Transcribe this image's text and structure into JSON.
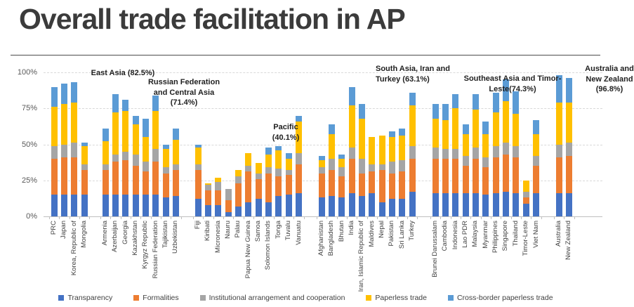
{
  "title": "Overall trade facilitation in AP",
  "chart_data": {
    "type": "bar",
    "stacked": true,
    "unit": "%",
    "ylim": [
      0,
      100
    ],
    "yticks": [
      {
        "value": 0,
        "label": "0%"
      },
      {
        "value": 25,
        "label": "25%"
      },
      {
        "value": 50,
        "label": "50%"
      },
      {
        "value": 75,
        "label": "75%"
      },
      {
        "value": 100,
        "label": "100%"
      }
    ],
    "grid": "dashed horizontal",
    "legend_position": "bottom",
    "series_names": [
      "Transparency",
      "Formalities",
      "Institutional arrangement and cooperation",
      "Paperless trade",
      "Cross-border paperless trade"
    ],
    "series_colors": [
      "#4472C4",
      "#ED7D31",
      "#A5A5A5",
      "#FFC000",
      "#5B9BD5"
    ],
    "groups": [
      {
        "label_lines": [
          "East Asia (82.5%)"
        ],
        "region_average": 82.5,
        "countries": [
          {
            "name": "PRC",
            "values": [
              15,
              25,
              9,
              27,
              14
            ]
          },
          {
            "name": "Japan",
            "values": [
              15,
              26,
              9,
              28,
              14
            ]
          },
          {
            "name": "Korea, Republic of",
            "values": [
              15,
              26,
              10,
              28,
              14
            ]
          },
          {
            "name": "Mongolia",
            "values": [
              15,
              17,
              4,
              13,
              2
            ]
          }
        ]
      },
      {
        "label_lines": [
          "Russian Federation",
          "and Central Asia",
          "(71.4%)"
        ],
        "region_average": 71.4,
        "countries": [
          {
            "name": "Armenia",
            "values": [
              15,
              17,
              4,
              16,
              9
            ]
          },
          {
            "name": "Azerbaijan",
            "values": [
              15,
              23,
              5,
              29,
              13
            ]
          },
          {
            "name": "Georgia",
            "values": [
              15,
              24,
              6,
              28,
              8
            ]
          },
          {
            "name": "Kazakhstan",
            "values": [
              15,
              20,
              8,
              21,
              6
            ]
          },
          {
            "name": "Kyrgyz Republic",
            "values": [
              15,
              16,
              7,
              17,
              13
            ]
          },
          {
            "name": "Russian Federation",
            "values": [
              15,
              23,
              9,
              26,
              11
            ]
          },
          {
            "name": "Tajikistan",
            "values": [
              13,
              17,
              4,
              13,
              3
            ]
          },
          {
            "name": "Uzbekistan",
            "values": [
              14,
              18,
              4,
              17,
              8
            ]
          }
        ]
      },
      {
        "label_lines": [
          "Pacific",
          "(40.1%)"
        ],
        "region_average": 40.1,
        "countries": [
          {
            "name": "Fiji",
            "values": [
              12,
              20,
              4,
              12,
              2
            ]
          },
          {
            "name": "Kiribati",
            "values": [
              8,
              10,
              4,
              1,
              0
            ]
          },
          {
            "name": "Micronesia",
            "values": [
              8,
              10,
              6,
              3,
              0
            ]
          },
          {
            "name": "Nauru",
            "values": [
              3,
              8,
              8,
              0,
              0
            ]
          },
          {
            "name": "Palau",
            "values": [
              7,
              16,
              5,
              4,
              0
            ]
          },
          {
            "name": "Papua New Guinea",
            "values": [
              10,
              21,
              4,
              9,
              0
            ]
          },
          {
            "name": "Samoa",
            "values": [
              12,
              14,
              4,
              7,
              0
            ]
          },
          {
            "name": "Solomon Islands",
            "values": [
              10,
              20,
              4,
              9,
              5
            ]
          },
          {
            "name": "Tonga",
            "values": [
              14,
              14,
              5,
              13,
              3
            ]
          },
          {
            "name": "Tuvalu",
            "values": [
              15,
              14,
              3,
              8,
              4
            ]
          },
          {
            "name": "Vanuatu",
            "values": [
              16,
              20,
              8,
              22,
              4
            ]
          }
        ]
      },
      {
        "label_lines": [
          "South Asia, Iran and",
          "Turkey (63.1%)"
        ],
        "region_average": 63.1,
        "countries": [
          {
            "name": "Afghanistan",
            "values": [
              13,
              17,
              4,
              5,
              3
            ]
          },
          {
            "name": "Bangladesh",
            "values": [
              14,
              18,
              8,
              17,
              7
            ]
          },
          {
            "name": "Bhutan",
            "values": [
              13,
              15,
              6,
              6,
              3
            ]
          },
          {
            "name": "India",
            "values": [
              16,
              24,
              8,
              29,
              13
            ]
          },
          {
            "name": "Iran, Islamic Republic of",
            "values": [
              14,
              16,
              10,
              28,
              10
            ]
          },
          {
            "name": "Maldives",
            "values": [
              16,
              15,
              5,
              19,
              0
            ]
          },
          {
            "name": "Nepal",
            "values": [
              10,
              22,
              4,
              20,
              0
            ]
          },
          {
            "name": "Pakistan",
            "values": [
              12,
              18,
              8,
              17,
              4
            ]
          },
          {
            "name": "Sri Lanka",
            "values": [
              12,
              19,
              8,
              17,
              5
            ]
          },
          {
            "name": "Turkey",
            "values": [
              17,
              23,
              9,
              28,
              9
            ]
          }
        ]
      },
      {
        "label_lines": [
          "Southeast Asia and Timor-",
          "Leste(74.3%)"
        ],
        "region_average": 74.3,
        "countries": [
          {
            "name": "Brunei Darussalam",
            "values": [
              16,
              24,
              8,
              20,
              10
            ]
          },
          {
            "name": "Cambodia",
            "values": [
              16,
              24,
              7,
              20,
              11
            ]
          },
          {
            "name": "Indonesia",
            "values": [
              16,
              24,
              7,
              28,
              10
            ]
          },
          {
            "name": "Lao PDR",
            "values": [
              16,
              19,
              7,
              15,
              7
            ]
          },
          {
            "name": "Malaysia",
            "values": [
              16,
              24,
              8,
              26,
              11
            ]
          },
          {
            "name": "Myanmar",
            "values": [
              15,
              19,
              7,
              16,
              9
            ]
          },
          {
            "name": "Philippines",
            "values": [
              16,
              25,
              8,
              23,
              14
            ]
          },
          {
            "name": "Singapore",
            "values": [
              17,
              26,
              8,
              29,
              15
            ]
          },
          {
            "name": "Thailand",
            "values": [
              16,
              25,
              8,
              22,
              16
            ]
          },
          {
            "name": "Timor-Leste",
            "values": [
              9,
              4,
              4,
              8,
              0
            ]
          },
          {
            "name": "Viet Nam",
            "values": [
              16,
              19,
              7,
              15,
              10
            ]
          }
        ]
      },
      {
        "label_lines": [
          "Australia and",
          "New Zealand",
          "(96.8%)"
        ],
        "region_average": 96.8,
        "countries": [
          {
            "name": "Australia",
            "values": [
              16,
              25,
              9,
              29,
              19
            ]
          },
          {
            "name": "New Zealand",
            "values": [
              16,
              26,
              9,
              28,
              17
            ]
          }
        ]
      }
    ]
  }
}
